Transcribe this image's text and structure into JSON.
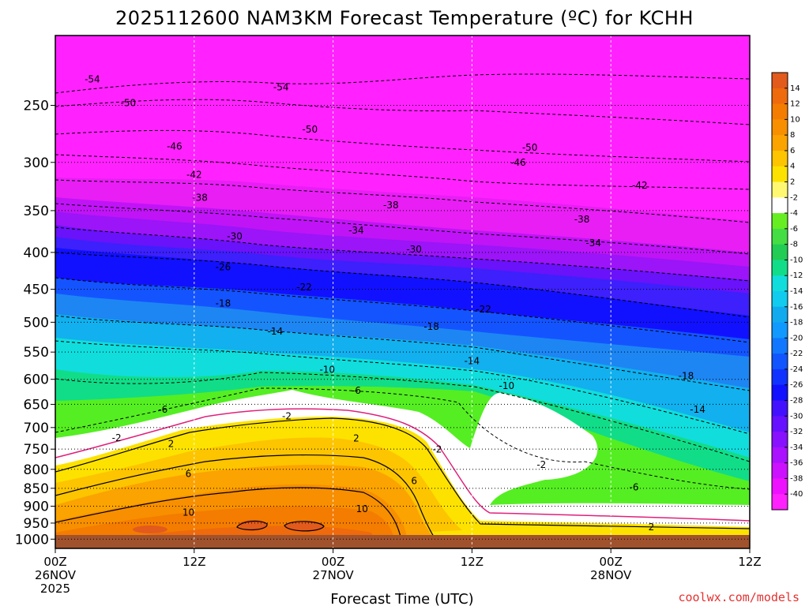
{
  "chart_data": {
    "type": "heatmap",
    "title": "2025112600 NAM3KM Forecast Temperature (ºC) for KCHH",
    "xlabel": "Forecast Time (UTC)",
    "ylabel": "",
    "credit": "coolwx.com/models",
    "x_forecast_hours": [
      0,
      12,
      24,
      36,
      48,
      60
    ],
    "x_tick_labels": [
      [
        "00Z",
        "26NOV",
        "2025"
      ],
      [
        "12Z"
      ],
      [
        "00Z",
        "27NOV"
      ],
      [
        "12Z"
      ],
      [
        "00Z",
        "28NOV"
      ],
      [
        "12Z"
      ]
    ],
    "y_pressure_levels_hPa": [
      250,
      300,
      350,
      400,
      450,
      500,
      550,
      600,
      650,
      700,
      750,
      800,
      850,
      900,
      950,
      1000
    ],
    "y_range_hPa": [
      200,
      1030
    ],
    "y_scale": "log-pressure",
    "grid": true,
    "colorbar": {
      "position": "right",
      "levels": [
        14,
        12,
        10,
        8,
        6,
        4,
        2,
        -2,
        -4,
        -6,
        -8,
        -10,
        -12,
        -14,
        -16,
        -18,
        -20,
        -22,
        -24,
        -26,
        -28,
        -30,
        -32,
        -34,
        -36,
        -38,
        -40
      ],
      "colors": [
        "#e25a1c",
        "#ee6a0c",
        "#f47c00",
        "#f78f00",
        "#fba300",
        "#fdc400",
        "#fde200",
        "#fff870",
        "#ffffff",
        "#66ee22",
        "#44dd44",
        "#22cc55",
        "#11dd88",
        "#11dddd",
        "#11ccee",
        "#11aaee",
        "#1199ff",
        "#1177ff",
        "#1155ff",
        "#1133ff",
        "#1111ff",
        "#4411ff",
        "#6611ff",
        "#8811ff",
        "#aa11ff",
        "#cc11ff",
        "#ee11ff",
        "#ff22ff"
      ]
    },
    "contour_labels": [
      {
        "value": "-54",
        "hour": 3.2,
        "p": 230
      },
      {
        "value": "-54",
        "hour": 19.5,
        "p": 236
      },
      {
        "value": "-50",
        "hour": 6.3,
        "p": 248
      },
      {
        "value": "-50",
        "hour": 22.0,
        "p": 270
      },
      {
        "value": "-50",
        "hour": 41.0,
        "p": 286
      },
      {
        "value": "-46",
        "hour": 10.3,
        "p": 285
      },
      {
        "value": "-46",
        "hour": 40.0,
        "p": 300
      },
      {
        "value": "-42",
        "hour": 12.0,
        "p": 312
      },
      {
        "value": "-42",
        "hour": 50.5,
        "p": 323
      },
      {
        "value": "-38",
        "hour": 12.5,
        "p": 336
      },
      {
        "value": "-38",
        "hour": 29.0,
        "p": 344
      },
      {
        "value": "-38",
        "hour": 45.5,
        "p": 360
      },
      {
        "value": "-34",
        "hour": 26.0,
        "p": 373
      },
      {
        "value": "-34",
        "hour": 46.5,
        "p": 388
      },
      {
        "value": "-30",
        "hour": 15.5,
        "p": 380
      },
      {
        "value": "-30",
        "hour": 31.0,
        "p": 396
      },
      {
        "value": "-26",
        "hour": 14.5,
        "p": 419
      },
      {
        "value": "-22",
        "hour": 21.5,
        "p": 447
      },
      {
        "value": "-22",
        "hour": 37.0,
        "p": 480
      },
      {
        "value": "-18",
        "hour": 14.5,
        "p": 471
      },
      {
        "value": "-18",
        "hour": 32.5,
        "p": 507
      },
      {
        "value": "-18",
        "hour": 54.5,
        "p": 594
      },
      {
        "value": "-14",
        "hour": 19.0,
        "p": 515
      },
      {
        "value": "-14",
        "hour": 36.0,
        "p": 566
      },
      {
        "value": "-14",
        "hour": 55.5,
        "p": 661
      },
      {
        "value": "-10",
        "hour": 23.5,
        "p": 582
      },
      {
        "value": "-10",
        "hour": 39.0,
        "p": 613
      },
      {
        "value": "-6",
        "hour": 9.3,
        "p": 661
      },
      {
        "value": "-6",
        "hour": 26.0,
        "p": 622
      },
      {
        "value": "-6",
        "hour": 50.0,
        "p": 847
      },
      {
        "value": "-2",
        "hour": 5.3,
        "p": 724
      },
      {
        "value": "-2",
        "hour": 20.0,
        "p": 675
      },
      {
        "value": "-2",
        "hour": 33.0,
        "p": 751
      },
      {
        "value": "-2",
        "hour": 42.0,
        "p": 788
      },
      {
        "value": "2",
        "hour": 10.0,
        "p": 737
      },
      {
        "value": "2",
        "hour": 26.0,
        "p": 725
      },
      {
        "value": "2",
        "hour": 51.5,
        "p": 962
      },
      {
        "value": "6",
        "hour": 11.5,
        "p": 812
      },
      {
        "value": "6",
        "hour": 31.0,
        "p": 830
      },
      {
        "value": "10",
        "hour": 11.5,
        "p": 918
      },
      {
        "value": "10",
        "hour": 26.5,
        "p": 908
      }
    ]
  }
}
